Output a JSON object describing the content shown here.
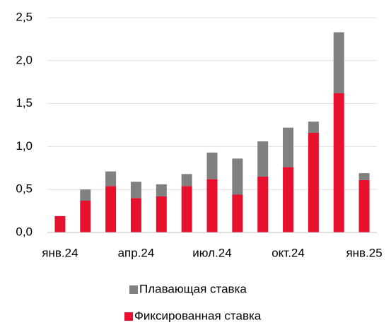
{
  "chart_data": {
    "type": "bar",
    "stacked": true,
    "categories": [
      "янв.24",
      null,
      null,
      "апр.24",
      null,
      null,
      "июл.24",
      null,
      null,
      "окт.24",
      null,
      null,
      "янв.25"
    ],
    "series": [
      {
        "name": "Фиксированная ставка",
        "color": "#e8112d",
        "values": [
          0.19,
          0.37,
          0.54,
          0.4,
          0.42,
          0.54,
          0.62,
          0.44,
          0.65,
          0.76,
          1.16,
          1.62,
          0.61
        ]
      },
      {
        "name": "Плавающая ставка",
        "color": "#808080",
        "values": [
          0,
          0.13,
          0.17,
          0.19,
          0.14,
          0.14,
          0.31,
          0.42,
          0.41,
          0.46,
          0.13,
          0.71,
          0.08
        ]
      }
    ],
    "ylim": [
      0,
      2.5
    ],
    "yticks": [
      {
        "value": 0,
        "label": "0,0"
      },
      {
        "value": 0.5,
        "label": "0,5"
      },
      {
        "value": 1,
        "label": "1,0"
      },
      {
        "value": 1.5,
        "label": "1,5"
      },
      {
        "value": 2,
        "label": "2,0"
      },
      {
        "value": 2.5,
        "label": "2,5"
      }
    ],
    "grid": true
  }
}
